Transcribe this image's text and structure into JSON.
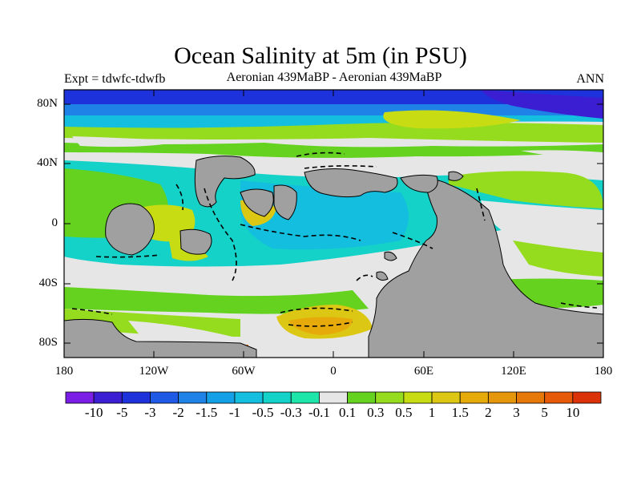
{
  "title": "Ocean Salinity at 5m (in PSU)",
  "subtitle_left": "Expt = tdwfc-tdwfb",
  "subtitle_center": "Aeronian 439MaBP - Aeronian 439MaBP",
  "subtitle_right": "ANN",
  "y_ticks": [
    "80N",
    "40N",
    "0",
    "40S",
    "80S"
  ],
  "x_ticks": [
    "180",
    "120W",
    "60W",
    "0",
    "60E",
    "120E",
    "180"
  ],
  "colorbar": {
    "labels": [
      "-10",
      "-5",
      "-3",
      "-2",
      "-1.5",
      "-1",
      "-0.5",
      "-0.3",
      "-0.1",
      "0.1",
      "0.3",
      "0.5",
      "1",
      "1.5",
      "2",
      "3",
      "5",
      "10"
    ],
    "colors": [
      "#7a1ee6",
      "#3c1ed2",
      "#1e32dc",
      "#1e5ae6",
      "#1e82e6",
      "#14a0e6",
      "#14bede",
      "#14d2c8",
      "#1ee6aa",
      "#e6e6e6",
      "#64d21e",
      "#96dc1e",
      "#c8dc14",
      "#dcc814",
      "#e6aa0a",
      "#e6960a",
      "#e6780a",
      "#e65a0a",
      "#dc320a"
    ]
  },
  "colors": {
    "land": "#a0a0a0",
    "ocean_neutral": "#e6e6e6",
    "coast": "#000000"
  }
}
